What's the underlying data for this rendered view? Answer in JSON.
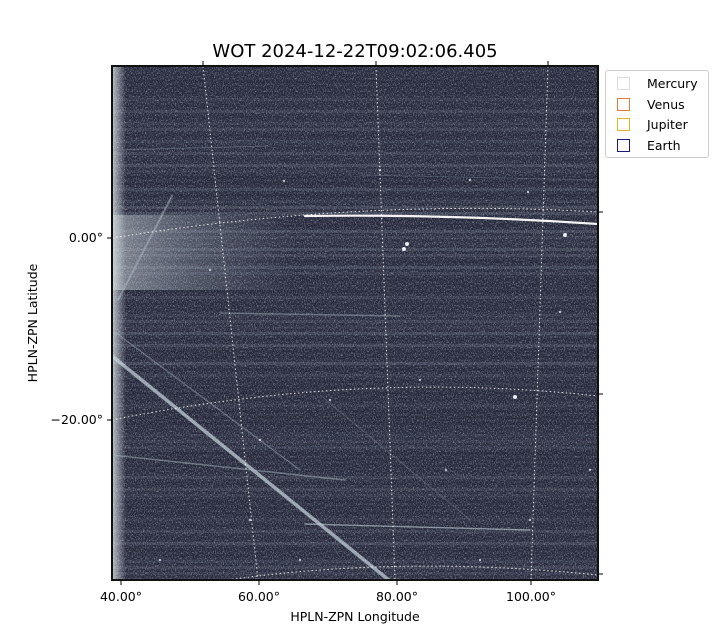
{
  "chart_data": {
    "type": "image",
    "title": "WOT 2024-12-22T09:02:06.405",
    "xlabel": "HPLN-ZPN Longitude",
    "ylabel": "HPLN-ZPN Latitude",
    "x_ticks": [
      "40.00°",
      "60.00°",
      "80.00°",
      "100.00°"
    ],
    "y_ticks": [
      "0.00°",
      "−20.00°"
    ],
    "grid": true,
    "grid_style": "dotted white coordinate grid",
    "colormap": "gray-blue",
    "legend_position": "upper-right outside",
    "legend": [
      {
        "name": "Mercury",
        "color": "#dddddd"
      },
      {
        "name": "Venus",
        "color": "#e07b39"
      },
      {
        "name": "Jupiter",
        "color": "#e6b422"
      },
      {
        "name": "Earth",
        "color": "#1a1a80"
      }
    ]
  }
}
